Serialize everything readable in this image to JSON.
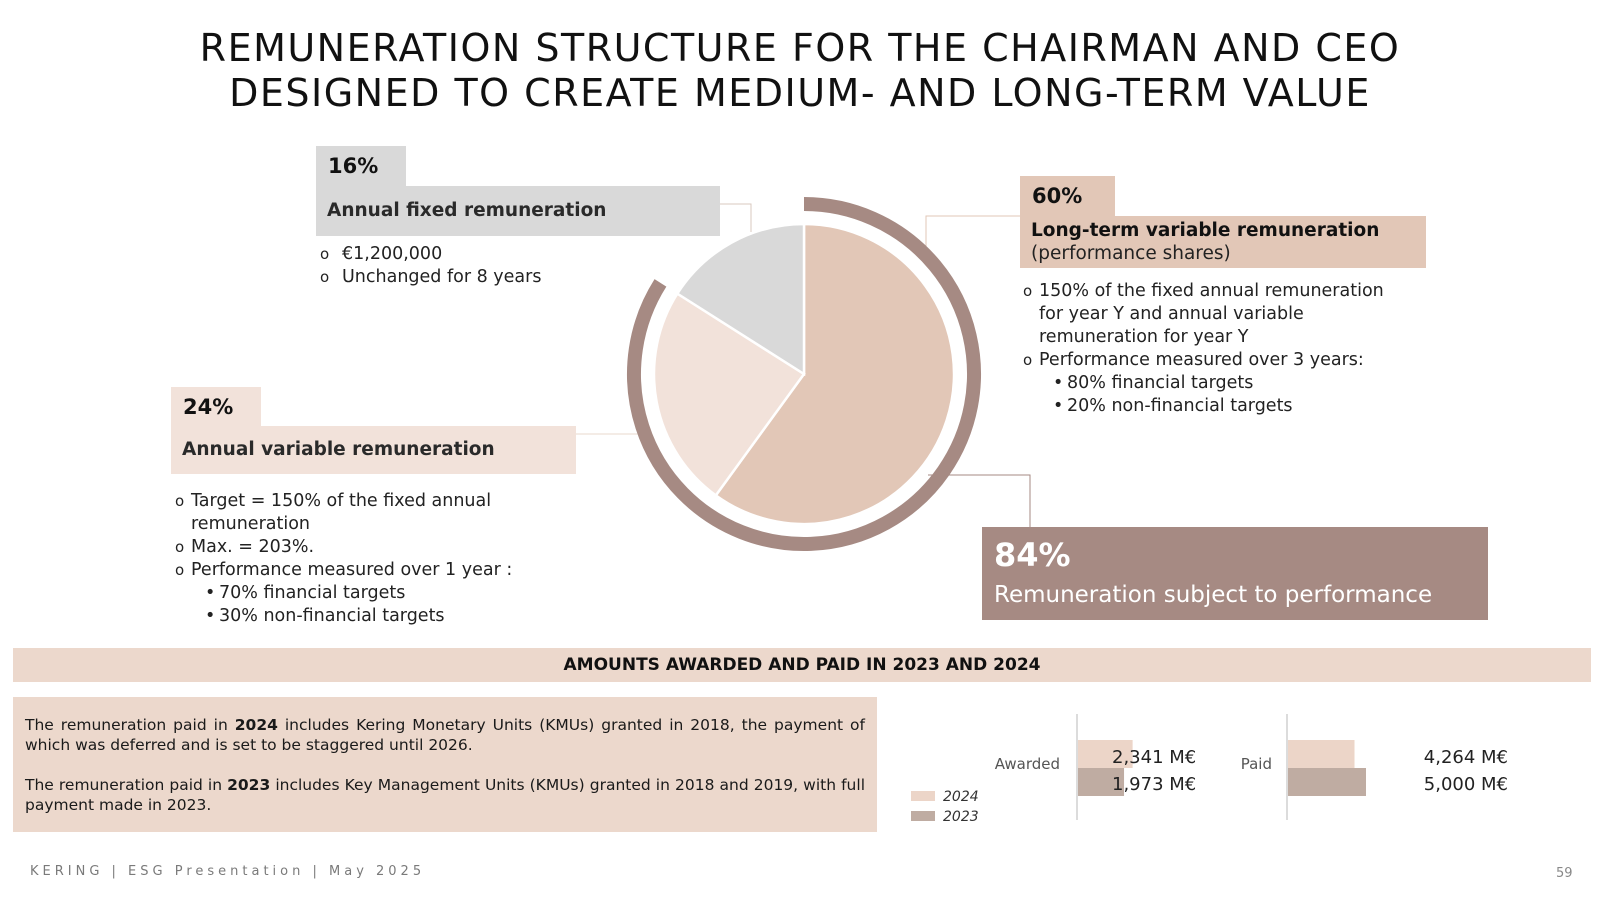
{
  "title": {
    "line1": "REMUNERATION STRUCTURE FOR THE CHAIRMAN AND CEO",
    "line2": "DESIGNED TO CREATE MEDIUM- AND LONG-TERM VALUE"
  },
  "fixed": {
    "percent": "16%",
    "label": "Annual fixed remuneration",
    "bullets": [
      "€1,200,000",
      "Unchanged for 8 years"
    ]
  },
  "variable": {
    "percent": "24%",
    "label": "Annual variable remuneration",
    "bullet1_line1": "Target = 150% of the fixed annual",
    "bullet1_line2": "remuneration",
    "bullet2": "Max. = 203%.",
    "bullet3": "Performance measured over 1 year :",
    "sub1": "70% financial targets",
    "sub2": "30% non-financial targets"
  },
  "longterm": {
    "percent": "60%",
    "label": "Long-term variable remuneration",
    "label2": "(performance shares)",
    "bullet1_line1": "150% of the fixed annual remuneration",
    "bullet1_line2": "for year Y and annual variable",
    "bullet1_line3": "remuneration for year Y",
    "bullet2": "Performance measured over 3 years:",
    "sub1": "80% financial targets",
    "sub2": "20% non-financial targets"
  },
  "performance": {
    "percent": "84%",
    "label": "Remuneration subject to performance"
  },
  "band_title": "AMOUNTS AWARDED AND PAID IN 2023 AND 2024",
  "notes": {
    "p1_a": "The remuneration paid in ",
    "p1_year": "2024",
    "p1_b": " includes Kering Monetary Units (KMUs) granted in 2018, the payment of which was deferred and is set to be staggered until 2026.",
    "p2_a": "The remuneration paid in ",
    "p2_year": "2023",
    "p2_b": " includes Key Management Units (KMUs) granted in 2018 and 2019, with full payment made in 2023."
  },
  "footer": "KERING  | ESG Presentation | May 2025",
  "page_number": "59",
  "colors": {
    "fixed": "#d9d9d9",
    "variable": "#f2e2da",
    "longterm": "#e2c7b7",
    "ring": "#a68a83",
    "bar2024": "#ecd5c8",
    "bar2023": "#bfaca2"
  },
  "chart_data": [
    {
      "type": "pie",
      "title": "",
      "slices": [
        {
          "label": "Long-term variable remuneration",
          "value": 60
        },
        {
          "label": "Annual variable remuneration",
          "value": 24
        },
        {
          "label": "Annual fixed remuneration",
          "value": 16
        }
      ],
      "highlight_ring": {
        "label": "Remuneration subject to performance",
        "value": 84
      }
    },
    {
      "type": "bar",
      "orientation": "horizontal",
      "unit": "M€",
      "series": [
        {
          "name": "2024",
          "values": {
            "Awarded": 2341,
            "Paid": 4264
          }
        },
        {
          "name": "2023",
          "values": {
            "Awarded": 1973,
            "Paid": 5000
          }
        }
      ],
      "categories": [
        "Awarded",
        "Paid"
      ],
      "value_labels": {
        "awarded_2024": "2,341 M€",
        "awarded_2023": "1,973 M€",
        "paid_2024": "4,264 M€",
        "paid_2023": "5,000 M€"
      },
      "legend": [
        "2024",
        "2023"
      ]
    }
  ]
}
